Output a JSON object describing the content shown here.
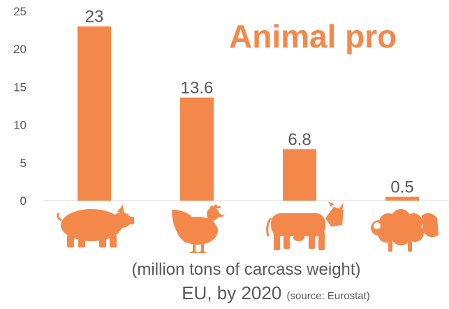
{
  "chart_data": {
    "type": "bar",
    "title": "Animal pro",
    "categories": [
      "pig-icon",
      "chicken-icon",
      "cow-icon",
      "sheep-icon"
    ],
    "values": [
      23,
      13.6,
      6.8,
      0.5
    ],
    "data_labels": [
      "23",
      "13.6",
      "6.8",
      "0.5"
    ],
    "yticks": [
      "0",
      "5",
      "10",
      "15",
      "20",
      "25"
    ],
    "ylim": [
      0,
      25
    ],
    "grid": false,
    "bar_color": "#F4884A"
  },
  "caption": {
    "line1": "(million tons of carcass weight)",
    "line2": "EU, by 2020",
    "source": "(source: Eurostat)"
  }
}
